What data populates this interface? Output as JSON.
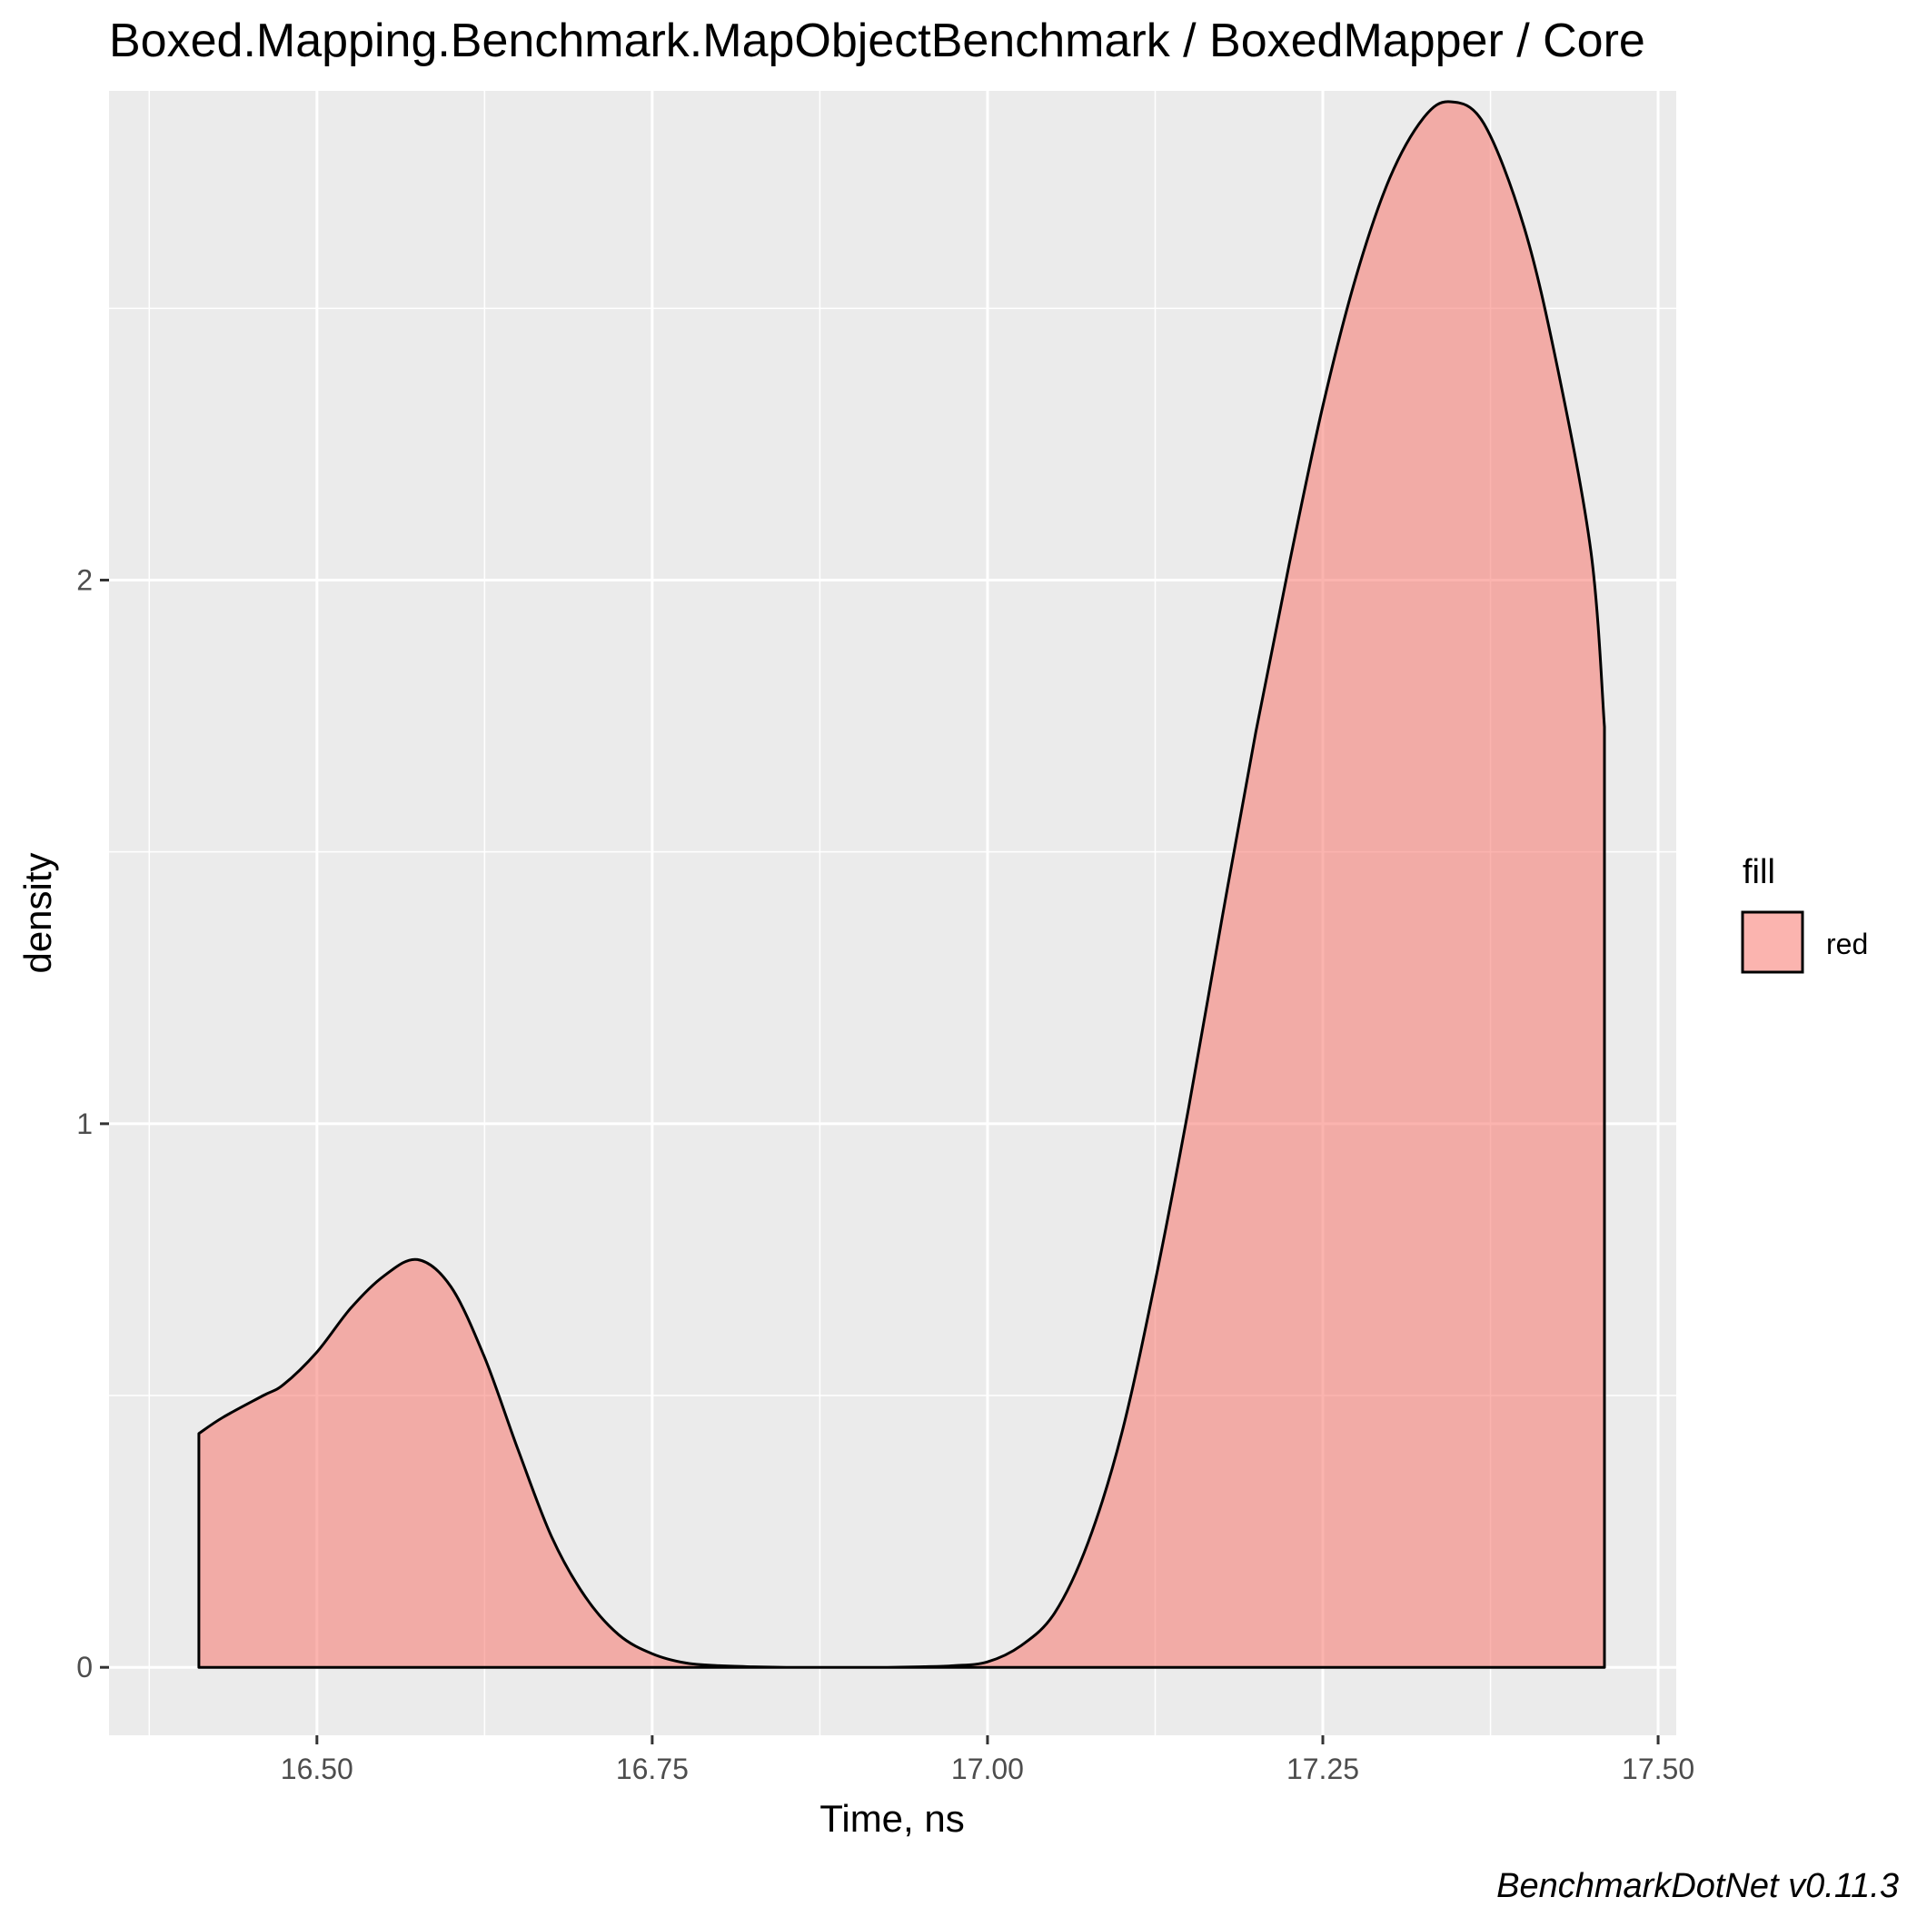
{
  "chart_data": {
    "type": "area",
    "title": "Boxed.Mapping.Benchmark.MapObjectBenchmark / BoxedMapper / Core",
    "xlabel": "Time, ns",
    "ylabel": "density",
    "caption": "BenchmarkDotNet v0.11.3",
    "xlim": [
      16.345,
      17.5135
    ],
    "ylim": [
      -0.125,
      2.9
    ],
    "x_ticks": [
      16.5,
      16.75,
      17.0,
      17.25,
      17.5
    ],
    "x_tick_labels": [
      "16.50",
      "16.75",
      "17.00",
      "17.25",
      "17.50"
    ],
    "y_ticks": [
      0,
      1,
      2
    ],
    "y_tick_labels": [
      "0",
      "1",
      "2"
    ],
    "grid": true,
    "legend": {
      "title": "fill",
      "position": "right",
      "entries": [
        {
          "label": "red",
          "color": "#f8766d"
        }
      ]
    },
    "series": [
      {
        "name": "red",
        "fill": "#f8766d",
        "fill_opacity": 0.55,
        "stroke": "#000000",
        "x": [
          16.412,
          16.43,
          16.46,
          16.475,
          16.5,
          16.525,
          16.55,
          16.575,
          16.6,
          16.625,
          16.65,
          16.675,
          16.7,
          16.725,
          16.75,
          16.775,
          16.8,
          16.825,
          16.85,
          16.875,
          16.9,
          16.925,
          16.95,
          16.975,
          17.0,
          17.025,
          17.05,
          17.075,
          17.1,
          17.125,
          17.15,
          17.175,
          17.2,
          17.225,
          17.25,
          17.275,
          17.3,
          17.325,
          17.345,
          17.37,
          17.4,
          17.425,
          17.45,
          17.46
        ],
        "y": [
          0.43,
          0.46,
          0.5,
          0.52,
          0.58,
          0.66,
          0.72,
          0.75,
          0.7,
          0.57,
          0.4,
          0.24,
          0.13,
          0.06,
          0.025,
          0.008,
          0.003,
          0.001,
          0.0,
          0.0,
          0.0,
          0.0,
          0.001,
          0.003,
          0.01,
          0.04,
          0.1,
          0.23,
          0.43,
          0.71,
          1.03,
          1.38,
          1.72,
          2.03,
          2.32,
          2.56,
          2.74,
          2.85,
          2.88,
          2.84,
          2.65,
          2.39,
          2.05,
          1.73
        ]
      }
    ]
  }
}
